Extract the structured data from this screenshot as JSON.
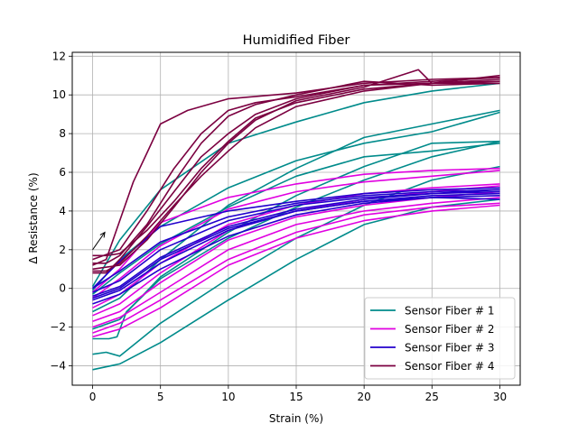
{
  "chart_data": {
    "type": "line",
    "title": "Humidified Fiber",
    "xlabel": "Strain (%)",
    "ylabel": "Δ Resistance (%)",
    "xlim": [
      -1.5,
      31.5
    ],
    "ylim": [
      -5,
      12.2
    ],
    "xticks": [
      0,
      5,
      10,
      15,
      20,
      25,
      30
    ],
    "yticks": [
      -4,
      -2,
      0,
      2,
      4,
      6,
      8,
      10,
      12
    ],
    "grid": true,
    "legend_position": "lower-right",
    "annotation": {
      "type": "arrow",
      "from": [
        0,
        2
      ],
      "to": [
        0.9,
        2.9
      ]
    },
    "series": [
      {
        "name": "Sensor Fiber # 1",
        "color": "#008b8b",
        "curves": [
          {
            "x": [
              0,
              2,
              5,
              10,
              15,
              20,
              25,
              30
            ],
            "y": [
              -4.2,
              -3.9,
              -2.8,
              -0.6,
              1.5,
              3.3,
              4.2,
              4.6
            ]
          },
          {
            "x": [
              0,
              1,
              2,
              5,
              10,
              15,
              20,
              25,
              30
            ],
            "y": [
              -3.4,
              -3.3,
              -3.5,
              -1.8,
              0.5,
              2.6,
              4.3,
              5.6,
              6.3
            ]
          },
          {
            "x": [
              0,
              1.2,
              1.8,
              2.5,
              5,
              10,
              15,
              20,
              25,
              30
            ],
            "y": [
              -2.6,
              -2.6,
              -2.5,
              -1.2,
              0.5,
              2.6,
              4.2,
              5.6,
              6.8,
              7.6
            ]
          },
          {
            "x": [
              0,
              2,
              5,
              10,
              15,
              20,
              25,
              30
            ],
            "y": [
              -0.3,
              0.8,
              2.3,
              4.2,
              5.8,
              6.8,
              7.1,
              7.5
            ]
          },
          {
            "x": [
              0,
              2,
              5,
              10,
              15,
              20,
              25,
              30
            ],
            "y": [
              -0.1,
              1.5,
              3.2,
              5.2,
              6.6,
              7.5,
              8.1,
              9.1
            ]
          },
          {
            "x": [
              0,
              2,
              5,
              10,
              15,
              20,
              25,
              30
            ],
            "y": [
              -1.2,
              -0.5,
              1.5,
              4.3,
              6.2,
              7.8,
              8.5,
              9.2
            ]
          },
          {
            "x": [
              0,
              2,
              5,
              10,
              15,
              20,
              25,
              30
            ],
            "y": [
              -2.1,
              -1.6,
              0.6,
              2.9,
              4.8,
              6.3,
              7.5,
              7.6
            ]
          },
          {
            "x": [
              0,
              2,
              5,
              10,
              15,
              20,
              25,
              30
            ],
            "y": [
              0.1,
              2.5,
              5.1,
              7.5,
              8.6,
              9.6,
              10.2,
              10.6
            ]
          }
        ]
      },
      {
        "name": "Sensor Fiber # 2",
        "color": "#e000e0",
        "curves": [
          {
            "x": [
              0,
              2,
              5,
              10,
              15,
              20,
              25,
              30
            ],
            "y": [
              -2.3,
              -1.8,
              -0.6,
              1.5,
              2.9,
              3.8,
              4.2,
              4.4
            ]
          },
          {
            "x": [
              0,
              2,
              5,
              10,
              15,
              20,
              25,
              30
            ],
            "y": [
              -2.0,
              -1.5,
              -0.2,
              2.0,
              3.3,
              4.0,
              4.4,
              4.7
            ]
          },
          {
            "x": [
              0,
              2,
              5,
              10,
              15,
              20,
              25,
              30
            ],
            "y": [
              -1.7,
              -1.2,
              0.3,
              2.5,
              3.7,
              4.3,
              4.7,
              5.0
            ]
          },
          {
            "x": [
              0,
              2,
              5,
              10,
              15,
              20,
              25,
              30
            ],
            "y": [
              -1.4,
              -0.8,
              0.8,
              3.0,
              4.0,
              4.6,
              5.0,
              5.3
            ]
          },
          {
            "x": [
              0,
              2,
              5,
              10,
              15,
              20,
              25,
              30
            ],
            "y": [
              -1.0,
              -0.3,
              1.3,
              3.3,
              4.3,
              4.9,
              5.2,
              5.4
            ]
          },
          {
            "x": [
              0,
              2,
              5,
              10,
              15,
              20,
              25,
              30
            ],
            "y": [
              -0.5,
              0.5,
              2.2,
              4.1,
              5.0,
              5.5,
              5.8,
              6.1
            ]
          },
          {
            "x": [
              0,
              2,
              5,
              10,
              15,
              20,
              25,
              30
            ],
            "y": [
              -0.2,
              1.0,
              3.4,
              4.7,
              5.4,
              5.9,
              6.1,
              6.2
            ]
          },
          {
            "x": [
              0,
              2,
              5,
              10,
              15,
              20,
              25,
              30
            ],
            "y": [
              -2.5,
              -2.1,
              -1.0,
              1.2,
              2.6,
              3.5,
              4.0,
              4.3
            ]
          }
        ]
      },
      {
        "name": "Sensor Fiber # 3",
        "color": "#2200cc",
        "curves": [
          {
            "x": [
              0,
              2,
              5,
              10,
              15,
              20,
              25,
              30
            ],
            "y": [
              -0.8,
              -0.3,
              1.0,
              2.7,
              3.8,
              4.4,
              4.7,
              4.8
            ]
          },
          {
            "x": [
              0,
              2,
              5,
              10,
              15,
              20,
              25,
              30
            ],
            "y": [
              -0.6,
              -0.1,
              1.3,
              3.0,
              4.0,
              4.5,
              4.8,
              4.9
            ]
          },
          {
            "x": [
              0,
              2,
              5,
              10,
              15,
              20,
              25,
              30
            ],
            "y": [
              -0.4,
              0.1,
              1.6,
              3.2,
              4.1,
              4.6,
              4.9,
              5.0
            ]
          },
          {
            "x": [
              0,
              2,
              5,
              10,
              15,
              20,
              25,
              30
            ],
            "y": [
              -0.2,
              0.4,
              2.0,
              3.5,
              4.3,
              4.7,
              4.9,
              5.1
            ]
          },
          {
            "x": [
              0,
              2,
              5,
              10,
              15,
              20,
              25,
              30
            ],
            "y": [
              0.0,
              0.9,
              2.4,
              3.7,
              4.4,
              4.8,
              5.0,
              5.1
            ]
          },
          {
            "x": [
              0,
              2,
              5,
              10,
              15,
              20,
              25,
              30
            ],
            "y": [
              0.0,
              1.4,
              3.2,
              4.0,
              4.5,
              4.9,
              5.1,
              5.2
            ]
          },
          {
            "x": [
              0,
              2,
              5,
              10,
              15,
              20,
              25,
              30
            ],
            "y": [
              -0.5,
              0.0,
              1.5,
              3.1,
              4.0,
              4.5,
              4.7,
              4.6
            ]
          }
        ]
      },
      {
        "name": "Sensor Fiber # 4",
        "color": "#7b0040",
        "curves": [
          {
            "x": [
              0,
              1,
              2,
              3,
              4,
              5,
              7,
              10,
              15,
              20,
              25,
              30
            ],
            "y": [
              1.2,
              1.5,
              3.5,
              5.5,
              7.0,
              8.5,
              9.2,
              9.8,
              10.1,
              10.6,
              10.8,
              10.9
            ]
          },
          {
            "x": [
              0,
              1,
              2,
              4,
              6,
              8,
              10,
              12,
              15,
              20,
              25,
              30
            ],
            "y": [
              0.8,
              0.8,
              1.5,
              3.2,
              5.0,
              6.8,
              8.0,
              9.0,
              9.8,
              10.5,
              10.7,
              10.9
            ]
          },
          {
            "x": [
              0,
              1,
              2,
              4,
              6,
              8,
              10,
              12,
              15,
              20,
              25,
              30
            ],
            "y": [
              1.7,
              1.7,
              1.8,
              3.0,
              4.5,
              6.2,
              7.6,
              8.8,
              9.6,
              10.3,
              10.6,
              10.7
            ]
          },
          {
            "x": [
              0,
              1,
              2,
              4,
              6,
              8,
              10,
              12,
              15,
              20,
              25,
              30
            ],
            "y": [
              1.3,
              1.3,
              1.7,
              3.3,
              5.5,
              7.5,
              8.9,
              9.5,
              10.0,
              10.7,
              10.5,
              10.6
            ]
          },
          {
            "x": [
              0,
              1,
              2,
              4,
              6,
              8,
              10,
              12,
              15,
              20,
              25,
              30
            ],
            "y": [
              0.9,
              0.9,
              1.3,
              2.7,
              4.3,
              5.8,
              7.1,
              8.3,
              9.4,
              10.2,
              10.6,
              10.8
            ]
          },
          {
            "x": [
              0,
              2,
              4,
              6,
              8,
              10,
              12,
              15,
              20,
              24,
              25,
              30
            ],
            "y": [
              1.0,
              1.2,
              2.5,
              4.2,
              6.0,
              7.5,
              8.7,
              9.7,
              10.4,
              11.3,
              10.6,
              11.0
            ]
          },
          {
            "x": [
              0,
              2,
              4,
              6,
              8,
              10,
              12,
              15,
              20,
              25,
              30
            ],
            "y": [
              1.5,
              2.0,
              4.0,
              6.2,
              8.0,
              9.2,
              9.6,
              9.9,
              10.5,
              10.6,
              10.6
            ]
          }
        ]
      }
    ]
  }
}
